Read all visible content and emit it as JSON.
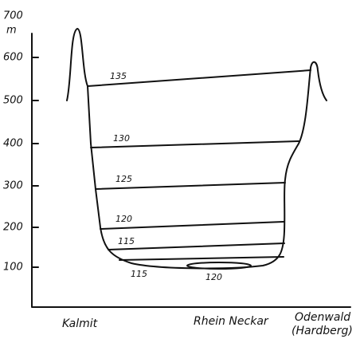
{
  "axis": {
    "unit": "m",
    "ticks": [
      "700",
      "600",
      "500",
      "400",
      "300",
      "200",
      "100"
    ]
  },
  "levels": [
    "135",
    "130",
    "125",
    "120",
    "115",
    "115",
    "120"
  ],
  "locations": [
    "Kalmit",
    "Rhein Neckar",
    "Odenwald",
    "(Hardberg)"
  ]
}
